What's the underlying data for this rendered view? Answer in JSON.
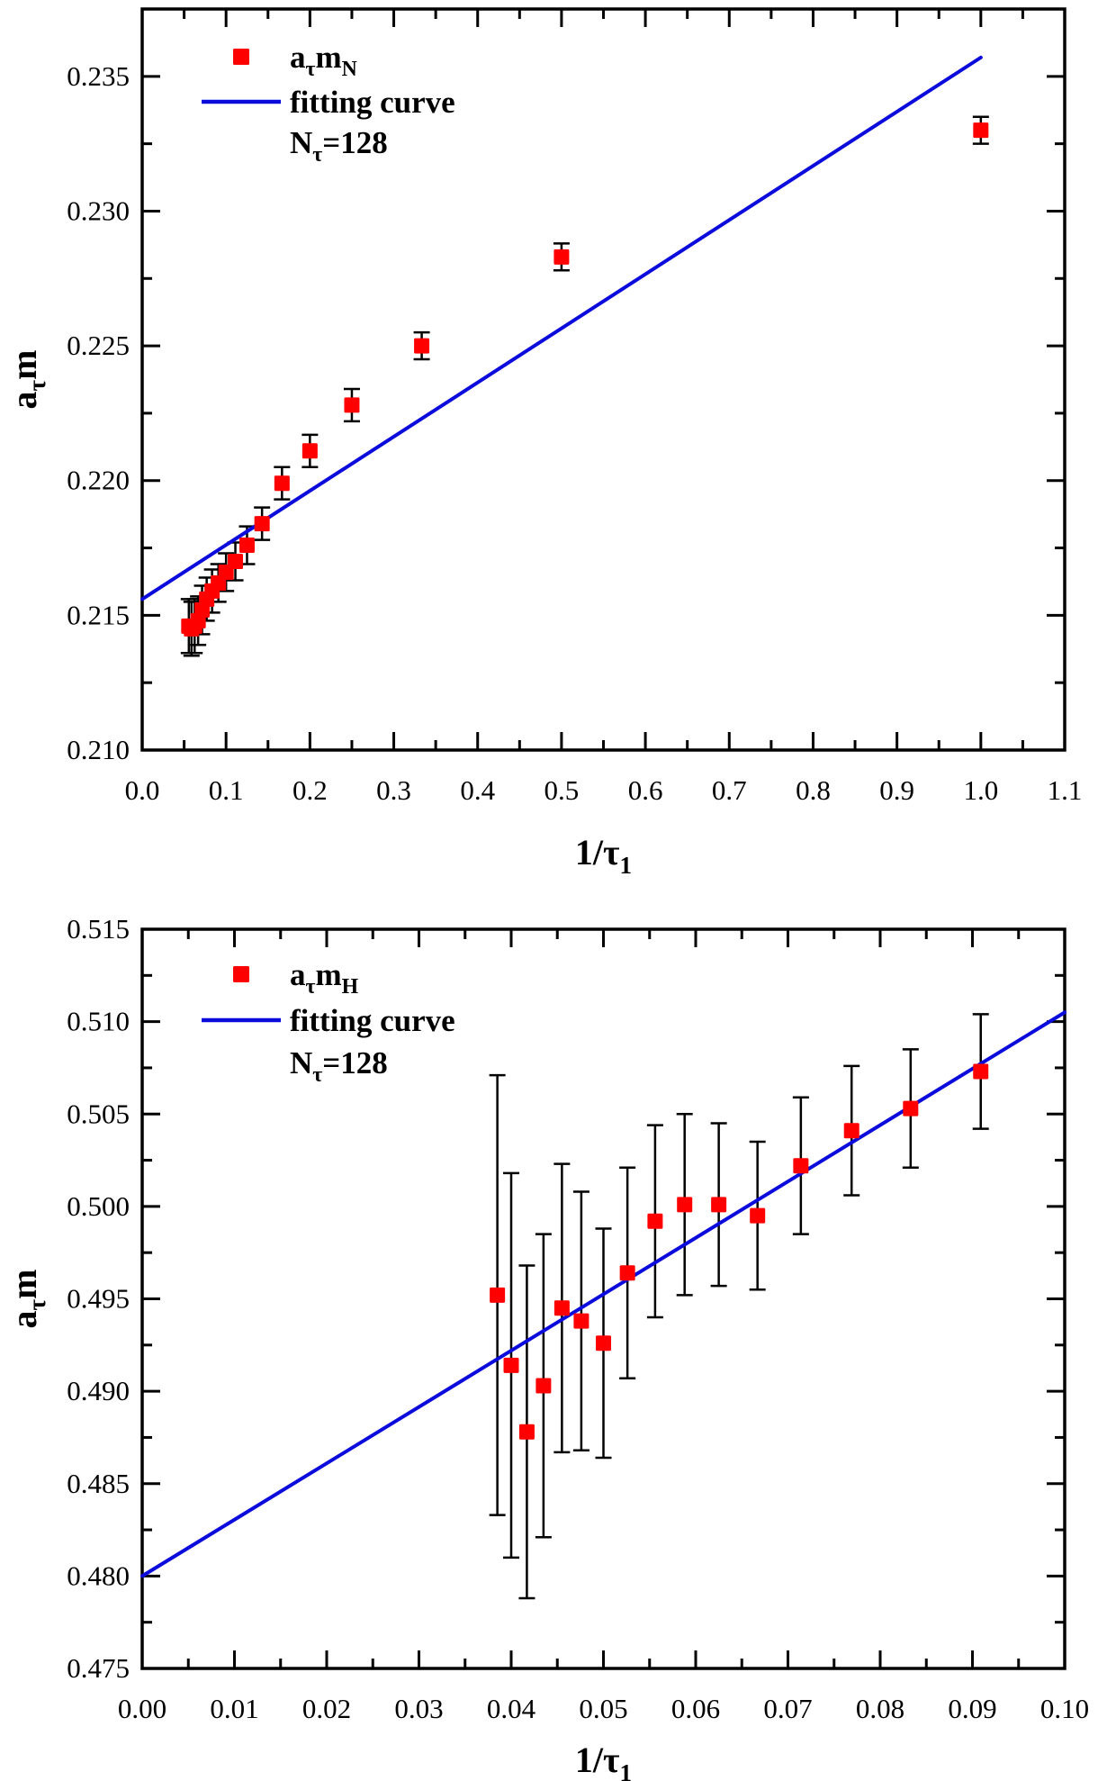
{
  "figure": {
    "background": "#ffffff",
    "colors": {
      "marker": "#ff0000",
      "fit_line": "#0b0bdb",
      "axis": "#000000",
      "text": "#000000"
    }
  },
  "chart_data": [
    {
      "type": "scatter",
      "panel": "top",
      "legend": {
        "series_text": "aτmN",
        "series_rich": [
          {
            "t": "a",
            "sub": "τ"
          },
          {
            "t": "m",
            "sub": "N"
          }
        ],
        "line_text": "fitting curve",
        "line_rich": [
          {
            "t": "fitting curve"
          }
        ],
        "note_text": "Nτ=128",
        "note_rich": [
          {
            "t": "N",
            "sub": "τ"
          },
          {
            "t": "=128"
          }
        ]
      },
      "xlabel_text": "1/τ1",
      "xlabel_rich": [
        {
          "t": "1/τ",
          "sub": "1"
        }
      ],
      "ylabel_text": "aτm",
      "ylabel_rich": [
        {
          "t": "a",
          "sub": "τ"
        },
        {
          "t": "m"
        }
      ],
      "xlim": [
        0,
        1.1
      ],
      "ylim": [
        0.21,
        0.2375
      ],
      "x_ticks": {
        "values": [
          0.0,
          0.1,
          0.2,
          0.3,
          0.4,
          0.5,
          0.6,
          0.7,
          0.8,
          0.9,
          1.0,
          1.1
        ],
        "labels": [
          "0.0",
          "0.1",
          "0.2",
          "0.3",
          "0.4",
          "0.5",
          "0.6",
          "0.7",
          "0.8",
          "0.9",
          "1.0",
          "1.1"
        ],
        "minor_step": 0.05
      },
      "y_ticks": {
        "values": [
          0.21,
          0.215,
          0.22,
          0.225,
          0.23,
          0.235
        ],
        "labels": [
          "0.210",
          "0.215",
          "0.220",
          "0.225",
          "0.230",
          "0.235"
        ],
        "minor_step": 0.0025
      },
      "fit_line": {
        "x": [
          0,
          1.0
        ],
        "y": [
          0.2156,
          0.2357
        ]
      },
      "points": [
        {
          "x": 0.0556,
          "y": 0.2146,
          "err": 0.001
        },
        {
          "x": 0.0588,
          "y": 0.2145,
          "err": 0.001
        },
        {
          "x": 0.0625,
          "y": 0.2146,
          "err": 0.001
        },
        {
          "x": 0.0667,
          "y": 0.2148,
          "err": 0.0009
        },
        {
          "x": 0.0714,
          "y": 0.2152,
          "err": 0.0009
        },
        {
          "x": 0.0769,
          "y": 0.2156,
          "err": 0.0008
        },
        {
          "x": 0.0833,
          "y": 0.2159,
          "err": 0.0008
        },
        {
          "x": 0.0909,
          "y": 0.2162,
          "err": 0.0007
        },
        {
          "x": 0.1,
          "y": 0.2166,
          "err": 0.0007
        },
        {
          "x": 0.1111,
          "y": 0.217,
          "err": 0.0007
        },
        {
          "x": 0.125,
          "y": 0.2176,
          "err": 0.0007
        },
        {
          "x": 0.1429,
          "y": 0.2184,
          "err": 0.0006
        },
        {
          "x": 0.1667,
          "y": 0.2199,
          "err": 0.0006
        },
        {
          "x": 0.2,
          "y": 0.2211,
          "err": 0.0006
        },
        {
          "x": 0.25,
          "y": 0.2228,
          "err": 0.0006
        },
        {
          "x": 0.3333,
          "y": 0.225,
          "err": 0.0005
        },
        {
          "x": 0.5,
          "y": 0.2283,
          "err": 0.0005
        },
        {
          "x": 1.0,
          "y": 0.233,
          "err": 0.0005
        }
      ]
    },
    {
      "type": "scatter",
      "panel": "bottom",
      "legend": {
        "series_text": "aτmH",
        "series_rich": [
          {
            "t": "a",
            "sub": "τ"
          },
          {
            "t": "m",
            "sub": "H"
          }
        ],
        "line_text": "fitting curve",
        "line_rich": [
          {
            "t": "fitting curve"
          }
        ],
        "note_text": "Nτ=128",
        "note_rich": [
          {
            "t": "N",
            "sub": "τ"
          },
          {
            "t": "=128"
          }
        ]
      },
      "xlabel_text": "1/τ1",
      "xlabel_rich": [
        {
          "t": "1/τ",
          "sub": "1"
        }
      ],
      "ylabel_text": "aτm",
      "ylabel_rich": [
        {
          "t": "a",
          "sub": "τ"
        },
        {
          "t": "m"
        }
      ],
      "xlim": [
        0,
        0.1
      ],
      "ylim": [
        0.475,
        0.515
      ],
      "x_ticks": {
        "values": [
          0.0,
          0.01,
          0.02,
          0.03,
          0.04,
          0.05,
          0.06,
          0.07,
          0.08,
          0.09,
          0.1
        ],
        "labels": [
          "0.00",
          "0.01",
          "0.02",
          "0.03",
          "0.04",
          "0.05",
          "0.06",
          "0.07",
          "0.08",
          "0.09",
          "0.10"
        ],
        "minor_step": 0.005
      },
      "y_ticks": {
        "values": [
          0.475,
          0.48,
          0.485,
          0.49,
          0.495,
          0.5,
          0.505,
          0.51,
          0.515
        ],
        "labels": [
          "0.475",
          "0.480",
          "0.485",
          "0.490",
          "0.495",
          "0.500",
          "0.505",
          "0.510",
          "0.515"
        ],
        "minor_step": 0.0025
      },
      "fit_line": {
        "x": [
          0,
          0.1
        ],
        "y": [
          0.48,
          0.5105
        ]
      },
      "points": [
        {
          "x": 0.0385,
          "y": 0.4952,
          "err": 0.0119
        },
        {
          "x": 0.04,
          "y": 0.4914,
          "err": 0.0104
        },
        {
          "x": 0.0417,
          "y": 0.4878,
          "err": 0.009
        },
        {
          "x": 0.0435,
          "y": 0.4903,
          "err": 0.0082
        },
        {
          "x": 0.0455,
          "y": 0.4945,
          "err": 0.0078
        },
        {
          "x": 0.0476,
          "y": 0.4938,
          "err": 0.007
        },
        {
          "x": 0.05,
          "y": 0.4926,
          "err": 0.0062
        },
        {
          "x": 0.0526,
          "y": 0.4964,
          "err": 0.0057
        },
        {
          "x": 0.0556,
          "y": 0.4992,
          "err": 0.0052
        },
        {
          "x": 0.0588,
          "y": 0.5001,
          "err": 0.0049
        },
        {
          "x": 0.0625,
          "y": 0.5001,
          "err": 0.0044
        },
        {
          "x": 0.0667,
          "y": 0.4995,
          "err": 0.004
        },
        {
          "x": 0.0714,
          "y": 0.5022,
          "err": 0.0037
        },
        {
          "x": 0.0769,
          "y": 0.5041,
          "err": 0.0035
        },
        {
          "x": 0.0833,
          "y": 0.5053,
          "err": 0.0032
        },
        {
          "x": 0.0909,
          "y": 0.5073,
          "err": 0.0031
        }
      ]
    }
  ]
}
